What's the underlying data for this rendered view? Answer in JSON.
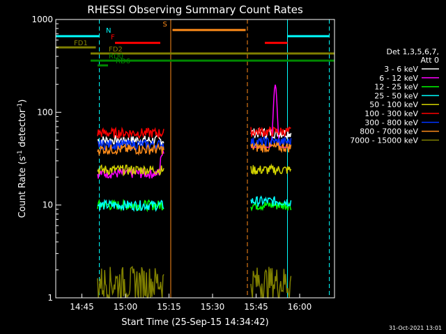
{
  "chart_data": {
    "type": "line",
    "title": "RHESSI Observing Summary Count Rates",
    "xlabel": "Start Time (25-Sep-15 14:34:42)",
    "ylabel": "Count Rate (s",
    "ylabel_sup": "-1",
    "ylabel_mid": " detector",
    "ylabel_sup2": "-1",
    "ylabel_end": ")",
    "y_scale": "log",
    "ylim": [
      1,
      1000
    ],
    "xlim_minutes": [
      14.6,
      16.2
    ],
    "x_ticks": [
      {
        "label": "14:45",
        "h": 14.75
      },
      {
        "label": "15:00",
        "h": 15.0
      },
      {
        "label": "15:15",
        "h": 15.25
      },
      {
        "label": "15:30",
        "h": 15.5
      },
      {
        "label": "15:45",
        "h": 15.75
      },
      {
        "label": "16:00",
        "h": 16.0
      }
    ],
    "y_ticks": [
      {
        "label": "1",
        "v": 1
      },
      {
        "label": "10",
        "v": 10
      },
      {
        "label": "100",
        "v": 100
      },
      {
        "label": "1000",
        "v": 1000
      }
    ],
    "legend_header": [
      "Det 1,3,5,6,7,",
      "Att 0"
    ],
    "legend_placement": "right",
    "series": [
      {
        "name": "3 - 6 keV",
        "color": "#ffffff",
        "seg1": 50,
        "seg2": 60
      },
      {
        "name": "6 - 12 keV",
        "color": "#ff00ff",
        "seg1": 22,
        "seg2": 60
      },
      {
        "name": "12 - 25 keV",
        "color": "#00ff00",
        "seg1": 10,
        "seg2": 10
      },
      {
        "name": "25 - 50 keV",
        "color": "#00ffff",
        "seg1": 10,
        "seg2": 11
      },
      {
        "name": "50 - 100 keV",
        "color": "#d4d400",
        "seg1": 24,
        "seg2": 24
      },
      {
        "name": "100 - 300 keV",
        "color": "#ff0000",
        "seg1": 60,
        "seg2": 62
      },
      {
        "name": "300 - 800 keV",
        "color": "#0033ff",
        "seg1": 45,
        "seg2": 48
      },
      {
        "name": "800 - 7000 keV",
        "color": "#ff8c1a",
        "seg1": 40,
        "seg2": 42
      },
      {
        "name": "7000 - 15000 keV",
        "color": "#808000",
        "seg1": 1.5,
        "seg2": 1.5
      }
    ],
    "flags": [
      {
        "label": "N",
        "color": "#00ffff",
        "y": 660,
        "start": 14.6,
        "end": 14.85,
        "start2": 15.93,
        "end2": 16.17
      },
      {
        "label": "F",
        "color": "#ff0000",
        "y": 560,
        "start": 14.94,
        "end": 15.2,
        "start2": 15.8,
        "end2": 15.93
      },
      {
        "label": "S",
        "color": "#ff8c1a",
        "y": 770,
        "start": 15.27,
        "end": 15.69
      },
      {
        "label": "FD1",
        "color": "#808000",
        "y": 500,
        "start": 14.6,
        "end": 14.83
      },
      {
        "label": "FD2",
        "color": "#808000",
        "y": 430,
        "start": 14.8,
        "end": 16.2
      },
      {
        "label": "RD0",
        "color": "#008800",
        "y": 360,
        "start": 14.8,
        "end": 16.2
      },
      {
        "label": "RD6",
        "color": "#008800",
        "y": 320,
        "start": 14.84,
        "end": 14.9
      }
    ],
    "vlines": [
      {
        "h": 14.6,
        "color": "#00ffff",
        "dash": false
      },
      {
        "h": 14.85,
        "color": "#00ffff",
        "dash": true
      },
      {
        "h": 15.26,
        "color": "#ff8c1a",
        "dash": false
      },
      {
        "h": 15.7,
        "color": "#ff8c1a",
        "dash": true
      },
      {
        "h": 15.93,
        "color": "#00ffff",
        "dash": false
      },
      {
        "h": 16.17,
        "color": "#00ffff",
        "dash": true
      }
    ],
    "segments": [
      [
        14.84,
        15.22
      ],
      [
        15.72,
        15.95
      ]
    ]
  },
  "footer_timestamp": "31-Oct-2021 13:01"
}
